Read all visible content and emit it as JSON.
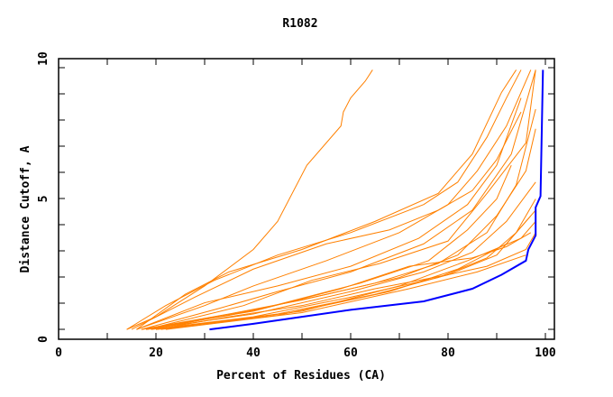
{
  "chart_data": {
    "type": "line",
    "title": "R1082",
    "xlabel": "Percent of Residues (CA)",
    "ylabel": "Distance Cutoff, A",
    "xlim": [
      0,
      100
    ],
    "ylim": [
      0,
      10
    ],
    "xticks": [
      "0",
      "20",
      "40",
      "60",
      "80",
      "100"
    ],
    "yticks": [
      "0",
      "5",
      "10"
    ],
    "colors": {
      "models": "#ff8000",
      "best": "#0000ff",
      "axis": "#000000"
    },
    "series": [
      {
        "name": "best",
        "color": "#0000ff",
        "points": [
          [
            31,
            0.35
          ],
          [
            40,
            0.55
          ],
          [
            50,
            0.8
          ],
          [
            60,
            1.05
          ],
          [
            75,
            1.35
          ],
          [
            85,
            1.8
          ],
          [
            91,
            2.3
          ],
          [
            96,
            2.8
          ],
          [
            96.5,
            3.2
          ],
          [
            98,
            3.7
          ],
          [
            98,
            4.7
          ],
          [
            99,
            5.1
          ],
          [
            99.5,
            9.6
          ]
        ]
      },
      {
        "name": "m1",
        "points": [
          [
            14,
            0.35
          ],
          [
            20,
            0.8
          ],
          [
            30,
            1.9
          ],
          [
            40,
            3.2
          ],
          [
            45,
            4.2
          ],
          [
            51,
            6.2
          ],
          [
            58,
            7.6
          ],
          [
            58.5,
            8.1
          ],
          [
            60,
            8.6
          ],
          [
            63,
            9.2
          ],
          [
            64.5,
            9.6
          ]
        ]
      },
      {
        "name": "m2",
        "points": [
          [
            14,
            0.35
          ],
          [
            22,
            1.2
          ],
          [
            32,
            2.1
          ],
          [
            45,
            3.0
          ],
          [
            60,
            3.8
          ],
          [
            75,
            4.8
          ],
          [
            82,
            5.6
          ],
          [
            88,
            7.2
          ],
          [
            92,
            8.6
          ],
          [
            95,
            9.6
          ]
        ]
      },
      {
        "name": "m3",
        "points": [
          [
            16,
            0.35
          ],
          [
            26,
            1.6
          ],
          [
            35,
            2.4
          ],
          [
            50,
            3.2
          ],
          [
            65,
            4.2
          ],
          [
            78,
            5.2
          ],
          [
            85,
            6.6
          ],
          [
            91,
            8.8
          ],
          [
            94,
            9.6
          ]
        ]
      },
      {
        "name": "m4",
        "points": [
          [
            16,
            0.35
          ],
          [
            30,
            1.2
          ],
          [
            40,
            1.9
          ],
          [
            55,
            2.8
          ],
          [
            70,
            3.8
          ],
          [
            80,
            4.8
          ],
          [
            86,
            6.0
          ],
          [
            92,
            7.6
          ],
          [
            97,
            9.6
          ]
        ]
      },
      {
        "name": "m5",
        "points": [
          [
            17,
            0.35
          ],
          [
            33,
            1.1
          ],
          [
            45,
            1.7
          ],
          [
            60,
            2.4
          ],
          [
            75,
            3.4
          ],
          [
            85,
            4.6
          ],
          [
            93,
            6.6
          ],
          [
            98,
            9.6
          ]
        ]
      },
      {
        "name": "m6",
        "points": [
          [
            17,
            0.35
          ],
          [
            35,
            0.9
          ],
          [
            50,
            1.4
          ],
          [
            65,
            2.0
          ],
          [
            78,
            2.7
          ],
          [
            88,
            3.8
          ],
          [
            94,
            5.5
          ],
          [
            98,
            8.2
          ]
        ]
      },
      {
        "name": "m7",
        "points": [
          [
            18,
            0.35
          ],
          [
            35,
            0.85
          ],
          [
            55,
            1.6
          ],
          [
            70,
            2.2
          ],
          [
            82,
            3.0
          ],
          [
            90,
            4.4
          ],
          [
            96,
            6.0
          ],
          [
            98,
            7.5
          ]
        ]
      },
      {
        "name": "m8",
        "points": [
          [
            18,
            0.35
          ],
          [
            40,
            0.9
          ],
          [
            60,
            1.7
          ],
          [
            75,
            2.4
          ],
          [
            85,
            3.1
          ],
          [
            92,
            4.2
          ],
          [
            98,
            5.6
          ]
        ]
      },
      {
        "name": "m9",
        "points": [
          [
            19,
            0.35
          ],
          [
            40,
            0.8
          ],
          [
            60,
            1.5
          ],
          [
            78,
            2.2
          ],
          [
            88,
            2.9
          ],
          [
            94,
            3.8
          ],
          [
            98,
            5.0
          ]
        ]
      },
      {
        "name": "m10",
        "points": [
          [
            20,
            0.35
          ],
          [
            45,
            0.9
          ],
          [
            65,
            1.6
          ],
          [
            80,
            2.3
          ],
          [
            90,
            3.0
          ],
          [
            97,
            4.4
          ]
        ]
      },
      {
        "name": "m11",
        "points": [
          [
            20,
            0.35
          ],
          [
            45,
            0.85
          ],
          [
            68,
            1.7
          ],
          [
            82,
            2.5
          ],
          [
            92,
            3.4
          ],
          [
            98,
            4.6
          ]
        ]
      },
      {
        "name": "m12",
        "points": [
          [
            21,
            0.35
          ],
          [
            50,
            1.0
          ],
          [
            70,
            1.9
          ],
          [
            84,
            2.8
          ],
          [
            95,
            3.6
          ],
          [
            98,
            4.2
          ]
        ]
      },
      {
        "name": "m13",
        "points": [
          [
            22,
            0.35
          ],
          [
            50,
            0.95
          ],
          [
            72,
            1.8
          ],
          [
            86,
            2.4
          ],
          [
            96,
            3.0
          ]
        ]
      },
      {
        "name": "m14",
        "points": [
          [
            17,
            0.35
          ],
          [
            40,
            1.0
          ],
          [
            58,
            1.8
          ],
          [
            72,
            2.6
          ],
          [
            85,
            2.9
          ],
          [
            92,
            3.3
          ],
          [
            97,
            3.8
          ]
        ]
      },
      {
        "name": "m15",
        "points": [
          [
            16,
            0.35
          ],
          [
            30,
            1.3
          ],
          [
            45,
            1.9
          ],
          [
            60,
            2.6
          ],
          [
            74,
            3.6
          ],
          [
            84,
            4.8
          ],
          [
            90,
            6.2
          ],
          [
            95,
            8.6
          ]
        ]
      },
      {
        "name": "m16",
        "points": [
          [
            18,
            0.35
          ],
          [
            38,
            1.2
          ],
          [
            52,
            2.1
          ],
          [
            66,
            2.7
          ],
          [
            80,
            3.5
          ],
          [
            88,
            5.2
          ],
          [
            96,
            7.0
          ],
          [
            98,
            9.6
          ]
        ]
      },
      {
        "name": "m17",
        "points": [
          [
            19,
            0.35
          ],
          [
            42,
            1.1
          ],
          [
            62,
            2.0
          ],
          [
            76,
            2.8
          ],
          [
            84,
            3.9
          ],
          [
            90,
            5.0
          ],
          [
            93,
            6.2
          ]
        ]
      },
      {
        "name": "m18",
        "points": [
          [
            20,
            0.35
          ],
          [
            35,
            0.8
          ],
          [
            50,
            1.2
          ],
          [
            65,
            1.8
          ],
          [
            80,
            2.3
          ],
          [
            88,
            2.6
          ],
          [
            96,
            3.2
          ],
          [
            98,
            3.8
          ]
        ]
      },
      {
        "name": "m19",
        "points": [
          [
            15,
            0.35
          ],
          [
            28,
            1.5
          ],
          [
            40,
            2.5
          ],
          [
            55,
            3.4
          ],
          [
            68,
            3.9
          ],
          [
            78,
            4.6
          ],
          [
            85,
            5.3
          ],
          [
            90,
            6.4
          ],
          [
            95,
            8.1
          ]
        ]
      }
    ]
  }
}
